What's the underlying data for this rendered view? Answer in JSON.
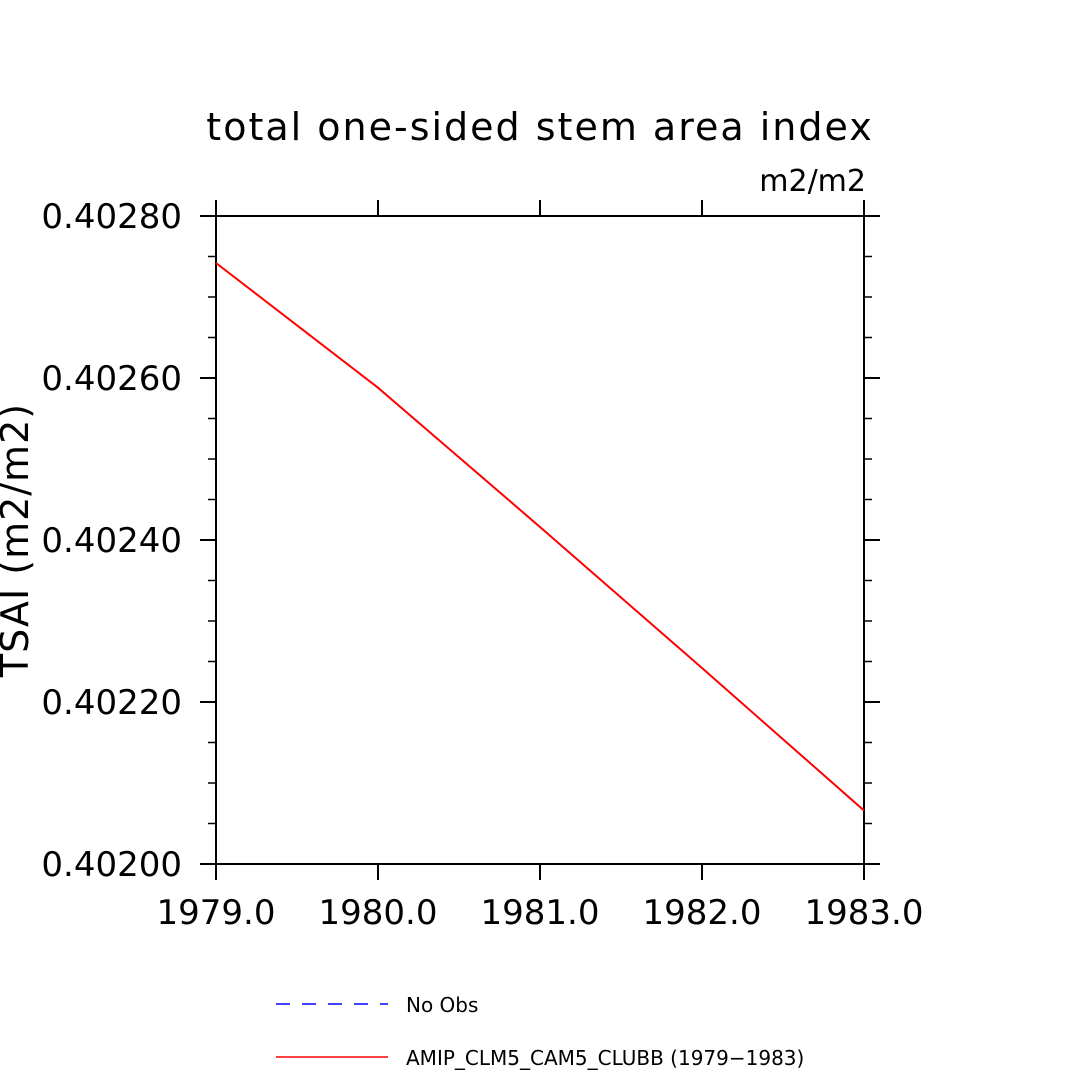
{
  "chart_data": {
    "type": "line",
    "title": "total one-sided stem area index",
    "units": "m2/m2",
    "xlabel": "",
    "ylabel": "TSAI  (m2/m2)",
    "xlim": [
      1979.0,
      1983.0
    ],
    "ylim": [
      0.402,
      0.4028
    ],
    "x_ticks": [
      "1979.0",
      "1980.0",
      "1981.0",
      "1982.0",
      "1983.0"
    ],
    "y_ticks": [
      "0.40200",
      "0.40220",
      "0.40240",
      "0.40260",
      "0.40280"
    ],
    "grid": false,
    "legend_position": "bottom",
    "series": [
      {
        "name": "AMIP_CLM5_CAM5_CLUBB (1979-1983)",
        "color": "#ff0000",
        "style": "solid",
        "x": [
          1979.0,
          1980.0,
          1981.0,
          1982.0,
          1983.0
        ],
        "y": [
          0.402742,
          0.402588,
          0.402416,
          0.402242,
          0.402066
        ]
      }
    ],
    "legend": [
      {
        "label": "No Obs",
        "color": "#0000ff",
        "style": "dashed"
      },
      {
        "label": "AMIP_CLM5_CAM5_CLUBB (1979−1983)",
        "color": "#ff0000",
        "style": "solid"
      }
    ]
  }
}
